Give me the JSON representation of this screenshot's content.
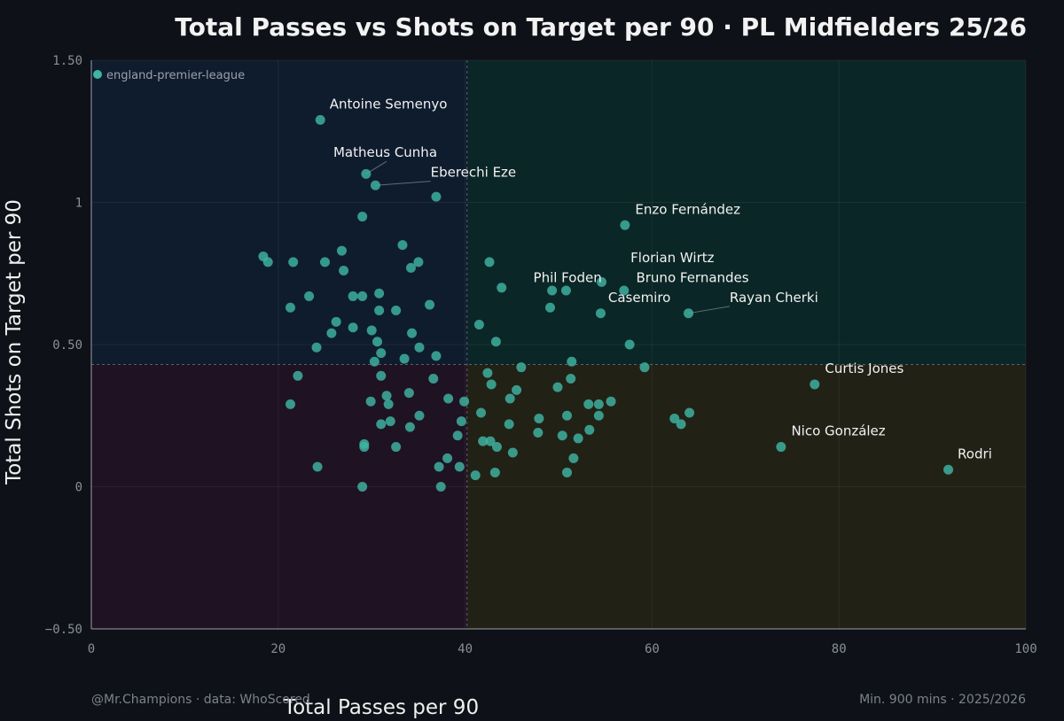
{
  "chart_data": {
    "type": "scatter",
    "title": "Total Passes vs Shots on Target per 90 · PL Midfielders 25/26",
    "xlabel": "Total Passes per 90",
    "ylabel": "Total Shots on Target per 90",
    "xlim": [
      0,
      100
    ],
    "ylim": [
      -0.5,
      1.5
    ],
    "x_ticks": [
      0,
      20,
      40,
      60,
      80,
      100
    ],
    "x_tick_labels": [
      "0",
      "20",
      "40",
      "60",
      "80",
      "100"
    ],
    "y_ticks": [
      -0.5,
      0,
      0.5,
      1,
      1.5
    ],
    "y_tick_labels": [
      "−0.50",
      "0",
      "0.50",
      "1",
      "1.50"
    ],
    "grid": true,
    "legend": {
      "position": "top-left",
      "entries": [
        "england-premier-league"
      ]
    },
    "quadrant_split": {
      "x": 40.2,
      "y": 0.43
    },
    "colors": {
      "point": "#3fb5a3",
      "quad_top_left": "#0f1c2e",
      "quad_top_right": "#0b2626",
      "quad_bottom_left": "#1f1222",
      "quad_bottom_right": "#222116",
      "background": "#0e1117"
    },
    "labeled_points": [
      {
        "name": "Antoine Semenyo",
        "x": 24.5,
        "y": 1.29,
        "label_x": 25.5,
        "label_y": 1.33
      },
      {
        "name": "Matheus Cunha",
        "x": 29.4,
        "y": 1.1,
        "label_x": 25.9,
        "label_y": 1.16
      },
      {
        "name": "Eberechi Eze",
        "x": 30.4,
        "y": 1.06,
        "label_x": 36.3,
        "label_y": 1.09
      },
      {
        "name": "Enzo Fernández",
        "x": 57.1,
        "y": 0.92,
        "label_x": 58.2,
        "label_y": 0.96
      },
      {
        "name": "Florian Wirtz",
        "x": 54.6,
        "y": 0.72,
        "label_x": 57.7,
        "label_y": 0.79
      },
      {
        "name": "Phil Foden",
        "x": 49.3,
        "y": 0.69,
        "label_x": 47.3,
        "label_y": 0.72
      },
      {
        "name": "Bruno Fernandes",
        "x": 57.0,
        "y": 0.69,
        "label_x": 58.3,
        "label_y": 0.72
      },
      {
        "name": "Casemiro",
        "x": 54.5,
        "y": 0.61,
        "label_x": 55.3,
        "label_y": 0.65
      },
      {
        "name": "Rayan Cherki",
        "x": 63.9,
        "y": 0.61,
        "label_x": 68.3,
        "label_y": 0.65
      },
      {
        "name": "Curtis Jones",
        "x": 77.4,
        "y": 0.36,
        "label_x": 78.5,
        "label_y": 0.4
      },
      {
        "name": "Nico González",
        "x": 73.8,
        "y": 0.14,
        "label_x": 74.9,
        "label_y": 0.18
      },
      {
        "name": "Rodri",
        "x": 91.7,
        "y": 0.06,
        "label_x": 92.7,
        "label_y": 0.1
      }
    ],
    "points": [
      [
        18.4,
        0.81
      ],
      [
        18.9,
        0.79
      ],
      [
        21.6,
        0.79
      ],
      [
        25.0,
        0.79
      ],
      [
        27.0,
        0.76
      ],
      [
        26.8,
        0.83
      ],
      [
        23.3,
        0.67
      ],
      [
        21.3,
        0.63
      ],
      [
        29.0,
        0.95
      ],
      [
        33.3,
        0.85
      ],
      [
        34.2,
        0.77
      ],
      [
        35.0,
        0.79
      ],
      [
        28.0,
        0.67
      ],
      [
        29.0,
        0.67
      ],
      [
        30.8,
        0.68
      ],
      [
        30.8,
        0.62
      ],
      [
        32.6,
        0.62
      ],
      [
        36.2,
        0.64
      ],
      [
        26.2,
        0.58
      ],
      [
        25.7,
        0.54
      ],
      [
        28.0,
        0.56
      ],
      [
        30.0,
        0.55
      ],
      [
        34.3,
        0.54
      ],
      [
        24.1,
        0.49
      ],
      [
        30.6,
        0.51
      ],
      [
        31.0,
        0.47
      ],
      [
        33.5,
        0.45
      ],
      [
        35.1,
        0.49
      ],
      [
        36.9,
        0.46
      ],
      [
        30.3,
        0.44
      ],
      [
        22.1,
        0.39
      ],
      [
        31.0,
        0.39
      ],
      [
        36.6,
        0.38
      ],
      [
        34.0,
        0.33
      ],
      [
        31.6,
        0.32
      ],
      [
        29.9,
        0.3
      ],
      [
        31.8,
        0.29
      ],
      [
        21.3,
        0.29
      ],
      [
        35.1,
        0.25
      ],
      [
        31.0,
        0.22
      ],
      [
        32.0,
        0.23
      ],
      [
        34.1,
        0.21
      ],
      [
        29.2,
        0.15
      ],
      [
        29.2,
        0.14
      ],
      [
        32.6,
        0.14
      ],
      [
        24.2,
        0.07
      ],
      [
        37.2,
        0.07
      ],
      [
        38.1,
        0.1
      ],
      [
        39.4,
        0.07
      ],
      [
        29.0,
        0.0
      ],
      [
        37.4,
        0.0
      ],
      [
        38.2,
        0.31
      ],
      [
        39.9,
        0.3
      ],
      [
        39.6,
        0.23
      ],
      [
        39.2,
        0.18
      ],
      [
        41.7,
        0.26
      ],
      [
        41.9,
        0.16
      ],
      [
        42.7,
        0.16
      ],
      [
        43.4,
        0.14
      ],
      [
        41.1,
        0.04
      ],
      [
        43.2,
        0.05
      ],
      [
        44.7,
        0.22
      ],
      [
        45.1,
        0.12
      ],
      [
        42.4,
        0.4
      ],
      [
        42.8,
        0.36
      ],
      [
        44.8,
        0.31
      ],
      [
        45.5,
        0.34
      ],
      [
        46.0,
        0.42
      ],
      [
        47.9,
        0.24
      ],
      [
        47.8,
        0.19
      ],
      [
        49.9,
        0.35
      ],
      [
        50.4,
        0.18
      ],
      [
        50.9,
        0.25
      ],
      [
        51.3,
        0.38
      ],
      [
        51.4,
        0.44
      ],
      [
        51.6,
        0.1
      ],
      [
        52.1,
        0.17
      ],
      [
        50.9,
        0.05
      ],
      [
        53.2,
        0.29
      ],
      [
        53.3,
        0.2
      ],
      [
        54.3,
        0.29
      ],
      [
        54.3,
        0.25
      ],
      [
        55.6,
        0.3
      ],
      [
        57.6,
        0.5
      ],
      [
        59.2,
        0.42
      ],
      [
        62.4,
        0.24
      ],
      [
        63.1,
        0.22
      ],
      [
        64.0,
        0.26
      ],
      [
        49.1,
        0.63
      ],
      [
        50.8,
        0.69
      ],
      [
        43.9,
        0.7
      ],
      [
        42.6,
        0.79
      ],
      [
        41.5,
        0.57
      ],
      [
        43.3,
        0.51
      ],
      [
        36.9,
        1.02
      ]
    ]
  },
  "footer": {
    "credit": "@Mr.Champions · data: WhoScored",
    "note": "Min. 900 mins · 2025/2026"
  }
}
